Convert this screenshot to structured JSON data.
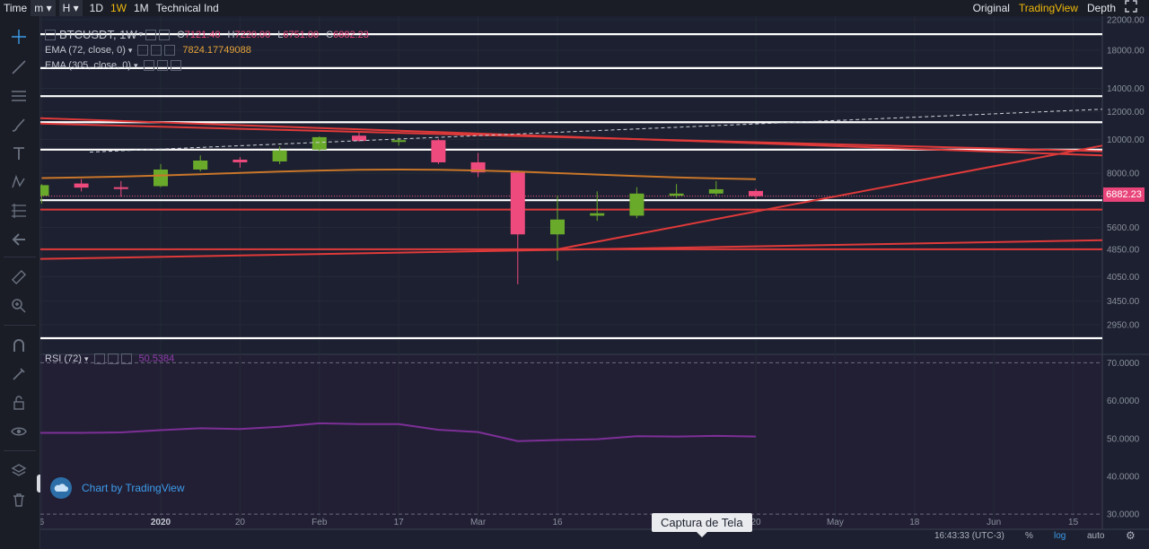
{
  "topbar": {
    "time_label": "Time",
    "minute_dropdown": "m",
    "hour_dropdown": "H",
    "intervals": [
      "1D",
      "1W",
      "1M"
    ],
    "active_interval": "1W",
    "technical": "Technical Ind",
    "views": [
      "Original",
      "TradingView",
      "Depth"
    ],
    "active_view": "TradingView"
  },
  "legend": {
    "symbol": "BTCUSDT, 1W",
    "ohlc": {
      "o_label": "O",
      "o": "7121.40",
      "h_label": "H",
      "h": "7220.00",
      "l_label": "L",
      "l": "6751.00",
      "c_label": "C",
      "c": "6882.23"
    },
    "ema72_label": "EMA (72, close, 0)",
    "ema72_value": "7824.17749088",
    "ema305_label": "EMA (305, close, 0)",
    "rsi_label": "RSI (72)",
    "rsi_value": "50.5384"
  },
  "price_tag": "6882.23",
  "tooltip": "Captura de Tela",
  "watermark": "Chart by TradingView",
  "footer": {
    "time": "16:43:33 (UTC-3)",
    "percent": "%",
    "log": "log",
    "auto": "auto"
  },
  "colors": {
    "up": "#6aaa2b",
    "down": "#ee4a7d",
    "trendline": "#e03a3a",
    "ema72": "#c9762a",
    "rsi": "#7d2f96",
    "accent": "#f0b90b"
  },
  "icons": [
    "crosshair-icon",
    "trendline-icon",
    "horizontal-lines-icon",
    "brush-icon",
    "text-icon",
    "pattern-icon",
    "fib-icon",
    "back-arrow-icon",
    "ruler-icon",
    "zoom-icon",
    "magnet-icon",
    "lock-drawing-icon",
    "lock-icon",
    "eye-icon",
    "layers-icon",
    "trash-icon",
    "settings-icon",
    "fullscreen-icon"
  ],
  "chart_data": {
    "type": "candlestick",
    "symbol": "BTCUSDT",
    "interval": "1W",
    "y_scale": "log",
    "ylim": [
      2600,
      22000
    ],
    "y_ticks": [
      "22000.00",
      "18000.00",
      "14000.00",
      "12000.00",
      "10000.00",
      "8000.00",
      "6882.23",
      "5600.00",
      "4850.00",
      "4050.00",
      "3450.00",
      "2950.00"
    ],
    "y_tick_values": [
      22000,
      18000,
      14000,
      12000,
      10000,
      8000,
      6882.23,
      5600,
      4850,
      4050,
      3450,
      2950
    ],
    "x_ticks": [
      "6",
      "2020",
      "20",
      "Feb",
      "17",
      "Mar",
      "16",
      "20",
      "May",
      "18",
      "Jun",
      "15"
    ],
    "x_tick_dates": [
      "2019-12-16",
      "2020-01-06",
      "2020-01-20",
      "2020-02-03",
      "2020-02-17",
      "2020-03-02",
      "2020-03-16",
      "2020-04-20",
      "2020-05-04",
      "2020-05-18",
      "2020-06-01",
      "2020-06-15"
    ],
    "candles": [
      {
        "date": "2019-12-16",
        "open": 6900,
        "high": 7450,
        "low": 6550,
        "close": 7400
      },
      {
        "date": "2019-12-23",
        "open": 7480,
        "high": 7700,
        "low": 7100,
        "close": 7280
      },
      {
        "date": "2019-12-30",
        "open": 7300,
        "high": 7600,
        "low": 6850,
        "close": 7250
      },
      {
        "date": "2020-01-06",
        "open": 7350,
        "high": 8500,
        "low": 7300,
        "close": 8200
      },
      {
        "date": "2020-01-13",
        "open": 8200,
        "high": 9000,
        "low": 8100,
        "close": 8700
      },
      {
        "date": "2020-01-20",
        "open": 8750,
        "high": 8900,
        "low": 8300,
        "close": 8600
      },
      {
        "date": "2020-01-27",
        "open": 8650,
        "high": 9550,
        "low": 8500,
        "close": 9300
      },
      {
        "date": "2020-02-03",
        "open": 9350,
        "high": 10200,
        "low": 9250,
        "close": 10150
      },
      {
        "date": "2020-02-10",
        "open": 10250,
        "high": 10500,
        "low": 9850,
        "close": 9900
      },
      {
        "date": "2020-02-17",
        "open": 9900,
        "high": 10100,
        "low": 9600,
        "close": 9950
      },
      {
        "date": "2020-02-24",
        "open": 9950,
        "high": 10050,
        "low": 8500,
        "close": 8600
      },
      {
        "date": "2020-03-02",
        "open": 8600,
        "high": 9150,
        "low": 7800,
        "close": 8050
      },
      {
        "date": "2020-03-09",
        "open": 8050,
        "high": 8150,
        "low": 3850,
        "close": 5350
      },
      {
        "date": "2020-03-16",
        "open": 5350,
        "high": 6900,
        "low": 4500,
        "close": 5900
      },
      {
        "date": "2020-03-23",
        "open": 6050,
        "high": 7100,
        "low": 5850,
        "close": 6150
      },
      {
        "date": "2020-03-30",
        "open": 6050,
        "high": 7300,
        "low": 5950,
        "close": 7000
      },
      {
        "date": "2020-04-06",
        "open": 6900,
        "high": 7450,
        "low": 6800,
        "close": 7000
      },
      {
        "date": "2020-04-13",
        "open": 7000,
        "high": 7600,
        "low": 6900,
        "close": 7200
      },
      {
        "date": "2020-04-20",
        "open": 7121.4,
        "high": 7220.0,
        "low": 6751.0,
        "close": 6882.23
      }
    ],
    "ema72": {
      "name": "EMA (72, close, 0)",
      "last": 7824.17749088
    },
    "horizontal_lines": [
      20000,
      16000,
      13300,
      11200,
      9350,
      6700,
      6300,
      2700
    ],
    "rsi": {
      "name": "RSI (72)",
      "last": 50.5384,
      "ylim": [
        26,
        72
      ],
      "ticks": [
        70,
        60,
        50,
        40,
        30
      ],
      "tick_labels": [
        "70.0000",
        "60.0000",
        "50.0000",
        "40.0000",
        "30.0000"
      ],
      "values": [
        51.5,
        51.5,
        51.6,
        52.2,
        52.7,
        52.5,
        53.1,
        54.0,
        53.8,
        53.8,
        52.3,
        51.7,
        49.3,
        49.6,
        49.8,
        50.6,
        50.5,
        50.7,
        50.5
      ]
    }
  }
}
